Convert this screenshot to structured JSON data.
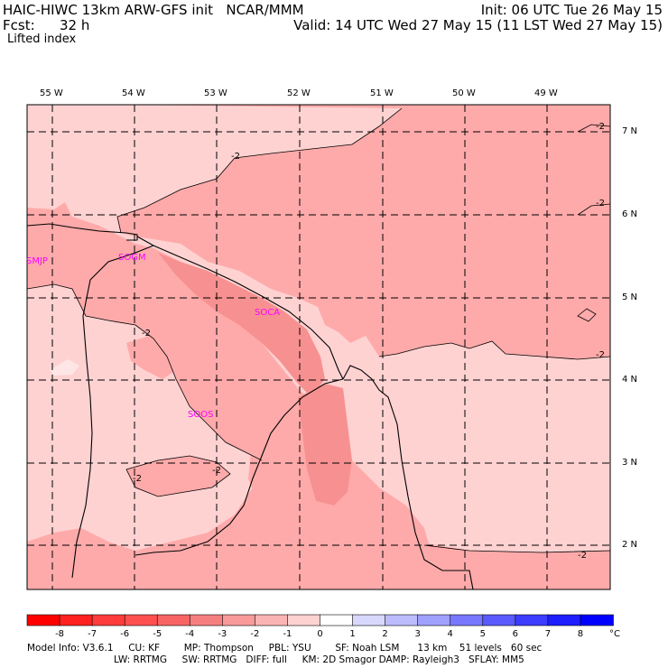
{
  "header": {
    "title_left": "HAIC-HIWC 13km ARW-GFS init   NCAR/MMM",
    "forecast_label": "Fcst:",
    "forecast_hours": "32 h",
    "field_name": "Lifted index",
    "init_time": "Init: 06 UTC Tue 26 May 15",
    "valid_time": "Valid: 14 UTC Wed 27 May 15 (11 LST Wed 27 May 15)"
  },
  "map": {
    "lon_labels": [
      "55 W",
      "54 W",
      "53 W",
      "52 W",
      "51 W",
      "50 W",
      "49 W"
    ],
    "lat_labels": [
      "7 N",
      "6 N",
      "5 N",
      "4 N",
      "3 N",
      "2 N"
    ],
    "stations": [
      "SMJP",
      "SOGM",
      "SOCA",
      "SOOS"
    ],
    "contour_labels": [
      "-2",
      "-2",
      "-2",
      "-2",
      "-2",
      "-2",
      "-2",
      "-2",
      "-2",
      "-2"
    ],
    "colors": {
      "li_minus1": "#ffd2d2",
      "li_minus2": "#ffaaaa",
      "li_minus3": "#f79191",
      "li_minus4": "#f07878",
      "station": "#ff00ff"
    }
  },
  "colorbar": {
    "ticks": [
      "-8",
      "-7",
      "-6",
      "-5",
      "-4",
      "-3",
      "-2",
      "-1",
      "0",
      "1",
      "2",
      "3",
      "4",
      "5",
      "6",
      "7",
      "8"
    ],
    "unit": "°C",
    "colors": [
      "#ff0000",
      "#ff2020",
      "#ff3c3c",
      "#ff5050",
      "#f86464",
      "#f57f7f",
      "#f89a9a",
      "#fbb4b4",
      "#ffd2d2",
      "#ffffff",
      "#d8d8ff",
      "#bcbcff",
      "#a0a0ff",
      "#7878ff",
      "#5a5aff",
      "#3c3cff",
      "#1e1eff",
      "#0000ff"
    ]
  },
  "model_info": {
    "line1": "Model Info: V3.6.1     CU: KF        MP: Thompson     PBL: YSU        SF: Noah LSM      13 km    51 levels   60 sec",
    "line2": "LW: RRTMG     SW: RRTMG   DIFF: full     KM: 2D Smagor DAMP: Rayleigh3   SFLAY: MM5"
  }
}
